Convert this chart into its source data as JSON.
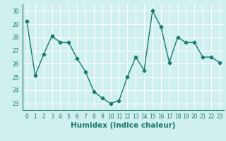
{
  "x": [
    0,
    1,
    2,
    3,
    4,
    5,
    6,
    7,
    8,
    9,
    10,
    11,
    12,
    13,
    14,
    15,
    16,
    17,
    18,
    19,
    20,
    21,
    22,
    23
  ],
  "y": [
    29.2,
    25.1,
    26.7,
    28.1,
    27.6,
    27.6,
    26.4,
    25.4,
    23.9,
    23.4,
    23.0,
    23.2,
    25.0,
    26.5,
    25.5,
    30.0,
    28.8,
    26.1,
    28.0,
    27.6,
    27.6,
    26.5,
    26.5,
    26.1
  ],
  "line_color": "#1a7a6e",
  "marker": "D",
  "marker_size": 2.5,
  "bg_color": "#cff0ee",
  "grid_color": "#ffffff",
  "xlabel": "Humidex (Indice chaleur)",
  "ylim": [
    22.5,
    30.5
  ],
  "xlim": [
    -0.5,
    23.5
  ],
  "yticks": [
    23,
    24,
    25,
    26,
    27,
    28,
    29,
    30
  ],
  "xticks": [
    0,
    1,
    2,
    3,
    4,
    5,
    6,
    7,
    8,
    9,
    10,
    11,
    12,
    13,
    14,
    15,
    16,
    17,
    18,
    19,
    20,
    21,
    22,
    23
  ],
  "tick_label_fontsize": 5.5,
  "xlabel_fontsize": 7.5,
  "line_width": 1.0
}
